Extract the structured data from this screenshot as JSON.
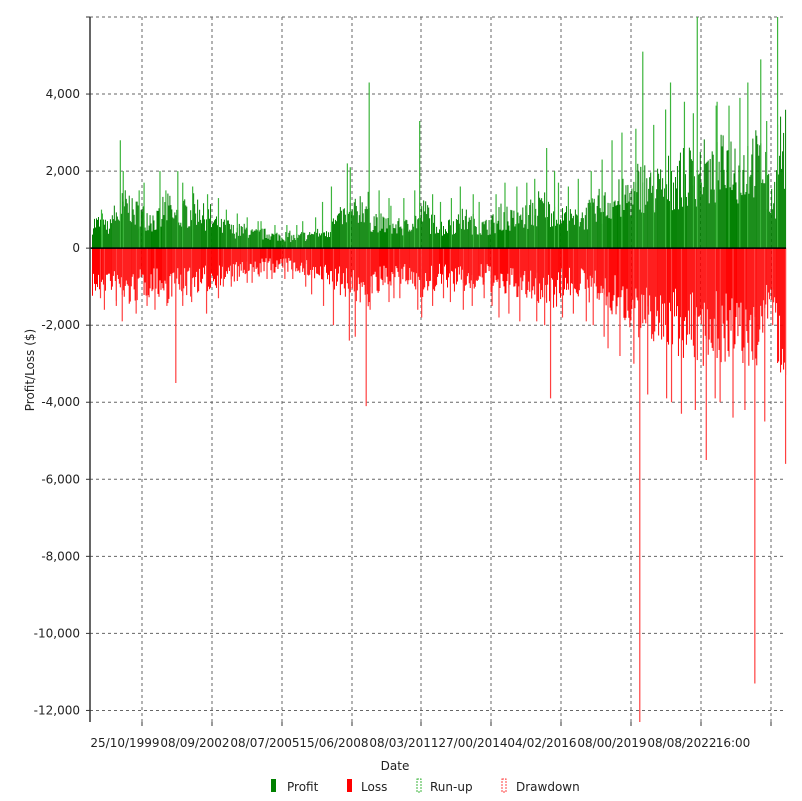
{
  "chart_data": {
    "type": "bar",
    "title": "",
    "xlabel": "Date",
    "ylabel": "Profit/Loss ($)",
    "ylim": [
      -12300,
      6000
    ],
    "y_ticks": [
      4000,
      2000,
      0,
      -2000,
      -4000,
      -6000,
      -8000,
      -10000,
      -12000
    ],
    "y_tick_labels": [
      "4,000",
      "2,000",
      "0",
      "-2,000",
      "-4,000",
      "-6,000",
      "-8,000",
      "-10,000",
      "-12,000"
    ],
    "x_tick_labels": [
      "25/10/1999",
      "08/09/2002",
      "08/07/2005",
      "15/06/2008",
      "08/03/2011",
      "27/00/2014",
      "04/02/2016",
      "08/00/2019",
      "08/08/2022",
      "16:00"
    ],
    "grid": true,
    "legend_position": "bottom",
    "legend": [
      "Profit",
      "Loss",
      "Run-up",
      "Drawdown"
    ],
    "colors": {
      "profit": "#008000",
      "loss": "#ff0000",
      "runup": "#3cb43c",
      "drawdown": "#ff4040"
    },
    "x_range": [
      "1999",
      "2024"
    ],
    "series": [
      {
        "name": "Profit",
        "values": [
          700,
          600,
          900,
          1200,
          1000,
          900,
          800,
          1100,
          900,
          1000,
          1100,
          900,
          700,
          600,
          500,
          500,
          400,
          400,
          350,
          350,
          300,
          350,
          400,
          500,
          700,
          900,
          1000,
          1200,
          800,
          700,
          600,
          600,
          800,
          1000,
          700,
          600,
          700,
          800,
          700,
          600,
          700,
          900,
          800,
          900,
          1000,
          1200,
          1100,
          900,
          800,
          900,
          1000,
          1200,
          1300,
          1400,
          1500,
          1800,
          1600,
          1700,
          1900,
          2000,
          2100,
          2200,
          2000,
          2300,
          2400,
          2200,
          2500,
          2300,
          1500,
          2800
        ]
      },
      {
        "name": "Run-up",
        "values": [
          1000,
          900,
          2800,
          2000,
          1500,
          1700,
          2000,
          1500,
          2000,
          1700,
          1600,
          1400,
          1300,
          1000,
          900,
          800,
          700,
          700,
          600,
          600,
          600,
          700,
          800,
          1200,
          1600,
          2200,
          2100,
          4300,
          1500,
          1300,
          1100,
          1300,
          1500,
          3300,
          1400,
          1200,
          1300,
          1600,
          1400,
          1200,
          1400,
          1700,
          1600,
          1700,
          1800,
          2600,
          2000,
          1700,
          1600,
          1800,
          2000,
          2300,
          2800,
          3000,
          3100,
          5100,
          3200,
          3600,
          4300,
          3800,
          3500,
          6000,
          3700,
          3800,
          3700,
          3900,
          4300,
          4900,
          3300,
          6000
        ]
      },
      {
        "name": "Loss",
        "values": [
          -1000,
          -900,
          -1100,
          -1200,
          -1100,
          -1000,
          -1000,
          -1100,
          -1000,
          -1000,
          -900,
          -900,
          -800,
          -700,
          -700,
          -600,
          -600,
          -500,
          -500,
          -500,
          -500,
          -600,
          -700,
          -800,
          -900,
          -1000,
          -1100,
          -1200,
          -1000,
          -900,
          -800,
          -800,
          -900,
          -1000,
          -900,
          -800,
          -900,
          -900,
          -900,
          -800,
          -900,
          -1000,
          -1000,
          -1100,
          -1100,
          -1200,
          -1200,
          -1000,
          -1000,
          -1000,
          -1100,
          -1300,
          -1400,
          -1500,
          -1600,
          -2000,
          -1900,
          -2000,
          -2100,
          -2200,
          -2300,
          -2400,
          -2200,
          -2300,
          -2500,
          -2400,
          -2600,
          -2400,
          -1500,
          -2800
        ]
      },
      {
        "name": "Drawdown",
        "values": [
          -1300,
          -1600,
          -1500,
          -1900,
          -1700,
          -1500,
          -1600,
          -1500,
          -3500,
          -1500,
          -1400,
          -1700,
          -1300,
          -1000,
          -1000,
          -900,
          -900,
          -800,
          -800,
          -800,
          -800,
          -1000,
          -1200,
          -1500,
          -2000,
          -2400,
          -2300,
          -4100,
          -1600,
          -1400,
          -1300,
          -1300,
          -1600,
          -1800,
          -1500,
          -1300,
          -1400,
          -1600,
          -1500,
          -1300,
          -1500,
          -1800,
          -1700,
          -1900,
          -1900,
          -2000,
          -3900,
          -1800,
          -1700,
          -1900,
          -2000,
          -2300,
          -2600,
          -2800,
          -3000,
          -12300,
          -3800,
          -3900,
          -4000,
          -4300,
          -4200,
          -5500,
          -3900,
          -4000,
          -4400,
          -4200,
          -11300,
          -4500,
          -2000,
          -5600
        ]
      }
    ]
  }
}
